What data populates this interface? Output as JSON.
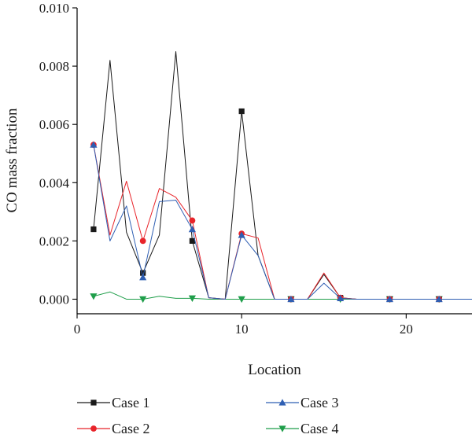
{
  "chart_data": {
    "type": "line",
    "xlabel": "Location",
    "ylabel": "CO mass fraction",
    "xlim": [
      0,
      24
    ],
    "ylim": [
      -0.0005,
      0.01
    ],
    "xticks": [
      0,
      10,
      20
    ],
    "xtick_labels": [
      "0",
      "10",
      "20"
    ],
    "yticks": [
      0,
      0.002,
      0.004,
      0.006,
      0.008,
      0.01
    ],
    "ytick_labels": [
      "0.000",
      "0.002",
      "0.004",
      "0.006",
      "0.008",
      "0.010"
    ],
    "grid": false,
    "legend_position": "bottom",
    "series": [
      {
        "name": "Case 1",
        "color": "#1a1a1a",
        "marker": "square",
        "x": [
          1,
          2,
          3,
          4,
          5,
          6,
          7,
          8,
          9,
          10,
          11,
          12,
          13,
          14,
          15,
          16,
          17,
          18,
          19,
          20,
          21,
          22,
          24
        ],
        "y": [
          0.0024,
          0.0082,
          0.0023,
          0.0009,
          0.0022,
          0.0085,
          0.002,
          5e-05,
          0.0,
          0.00645,
          0.0015,
          0.0,
          0.0,
          0.0,
          0.00085,
          5e-05,
          0.0,
          0.0,
          0.0,
          0.0,
          0.0,
          0.0,
          0.0
        ],
        "marker_x": [
          1,
          4,
          7,
          10,
          13,
          16,
          19,
          22
        ]
      },
      {
        "name": "Case 2",
        "color": "#e8242a",
        "marker": "circle",
        "x": [
          1,
          2,
          3,
          4,
          5,
          6,
          7,
          8,
          9,
          10,
          11,
          12,
          13,
          14,
          15,
          16,
          17,
          18,
          19,
          20,
          21,
          22,
          24
        ],
        "y": [
          0.0053,
          0.0022,
          0.00405,
          0.002,
          0.0038,
          0.0035,
          0.0027,
          5e-05,
          0.0,
          0.00225,
          0.0021,
          0.0,
          0.0,
          0.0,
          0.0009,
          5e-05,
          0.0,
          0.0,
          0.0,
          0.0,
          0.0,
          0.0,
          0.0
        ],
        "marker_x": [
          1,
          4,
          7,
          10,
          13,
          16,
          19,
          22
        ]
      },
      {
        "name": "Case 3",
        "color": "#2f5fb3",
        "marker": "triangle-up",
        "x": [
          1,
          2,
          3,
          4,
          5,
          6,
          7,
          8,
          9,
          10,
          11,
          12,
          13,
          14,
          15,
          16,
          17,
          18,
          19,
          20,
          21,
          22,
          24
        ],
        "y": [
          0.0053,
          0.002,
          0.0032,
          0.00075,
          0.00335,
          0.0034,
          0.0024,
          5e-05,
          0.0,
          0.0022,
          0.0015,
          0.0,
          0.0,
          0.0,
          0.00055,
          3e-05,
          0.0,
          0.0,
          0.0,
          0.0,
          0.0,
          0.0,
          0.0
        ],
        "marker_x": [
          1,
          4,
          7,
          10,
          13,
          16,
          19,
          22
        ]
      },
      {
        "name": "Case 4",
        "color": "#1f9e4a",
        "marker": "triangle-down",
        "x": [
          1,
          2,
          3,
          4,
          5,
          6,
          7,
          8,
          9,
          10,
          11,
          12,
          13,
          14,
          15,
          16,
          17,
          18,
          19,
          20,
          21,
          22,
          24
        ],
        "y": [
          0.0001,
          0.00025,
          0.0,
          0.0,
          0.0001,
          3e-05,
          3e-05,
          0.0,
          0.0,
          0.0,
          0.0,
          0.0,
          0.0,
          0.0,
          0.0,
          0.0,
          0.0,
          0.0,
          0.0,
          0.0,
          0.0,
          0.0,
          0.0
        ],
        "marker_x": [
          1,
          4,
          7,
          10,
          13,
          16,
          19,
          22
        ]
      }
    ]
  }
}
